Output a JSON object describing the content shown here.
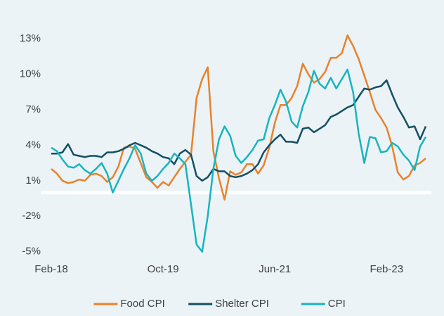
{
  "chart_data": {
    "type": "line",
    "categories": [
      "Feb-18",
      null,
      null,
      null,
      null,
      null,
      null,
      null,
      null,
      null,
      null,
      null,
      null,
      null,
      null,
      null,
      null,
      null,
      null,
      null,
      "Oct-19",
      null,
      null,
      null,
      null,
      null,
      null,
      null,
      null,
      null,
      null,
      null,
      null,
      null,
      null,
      null,
      null,
      null,
      null,
      null,
      "Jun-21",
      null,
      null,
      null,
      null,
      null,
      null,
      null,
      null,
      null,
      null,
      null,
      null,
      null,
      null,
      null,
      null,
      null,
      null,
      null,
      "Feb-23",
      null,
      null,
      null,
      null,
      null,
      null,
      null
    ],
    "series": [
      {
        "name": "Food CPI",
        "color": "#e8822a",
        "values": [
          2.0,
          1.6,
          1.0,
          0.8,
          0.9,
          1.1,
          1.0,
          1.5,
          1.6,
          1.4,
          0.9,
          1.3,
          2.2,
          3.8,
          3.9,
          3.7,
          2.5,
          1.3,
          0.9,
          0.4,
          0.9,
          0.6,
          1.3,
          2.0,
          2.6,
          3.2,
          8.0,
          9.6,
          10.6,
          3.5,
          1.2,
          -0.6,
          1.8,
          1.5,
          1.7,
          2.4,
          2.4,
          1.6,
          2.3,
          3.8,
          5.9,
          7.4,
          7.4,
          8.0,
          9.0,
          10.9,
          10.0,
          9.3,
          9.6,
          10.2,
          11.4,
          11.4,
          11.8,
          13.3,
          12.4,
          11.3,
          9.9,
          8.5,
          7.0,
          6.3,
          5.5,
          3.9,
          1.7,
          1.1,
          1.4,
          2.3,
          2.5,
          2.9
        ]
      },
      {
        "name": "Shelter CPI",
        "color": "#134f63",
        "values": [
          3.3,
          3.3,
          3.4,
          4.1,
          3.2,
          3.1,
          3.0,
          3.1,
          3.1,
          3.0,
          3.4,
          3.4,
          3.5,
          3.7,
          4.0,
          4.2,
          4.0,
          3.8,
          3.5,
          3.3,
          3.0,
          2.9,
          2.4,
          3.3,
          3.6,
          3.2,
          1.4,
          1.0,
          1.3,
          2.0,
          1.8,
          1.8,
          1.4,
          1.3,
          1.4,
          1.6,
          1.9,
          2.4,
          3.4,
          4.0,
          4.5,
          4.9,
          4.3,
          4.3,
          4.2,
          5.4,
          5.5,
          5.1,
          5.4,
          5.7,
          6.4,
          6.6,
          6.9,
          7.2,
          7.4,
          8.1,
          8.8,
          8.7,
          8.9,
          9.0,
          9.5,
          8.3,
          7.2,
          6.4,
          5.5,
          5.6,
          4.5,
          5.6
        ]
      },
      {
        "name": "CPI",
        "color": "#17b4bf",
        "values": [
          3.8,
          3.5,
          2.8,
          2.2,
          2.1,
          2.4,
          1.9,
          1.6,
          2.0,
          2.5,
          1.6,
          0.0,
          1.0,
          2.0,
          2.9,
          4.0,
          3.3,
          1.6,
          1.0,
          1.4,
          2.0,
          2.5,
          3.3,
          2.9,
          2.4,
          -1.0,
          -4.4,
          -5.0,
          -2.0,
          2.0,
          4.5,
          5.6,
          4.8,
          3.1,
          2.5,
          3.0,
          3.6,
          4.4,
          4.5,
          6.3,
          7.4,
          8.7,
          7.7,
          6.0,
          5.5,
          7.3,
          8.5,
          10.3,
          9.2,
          8.8,
          9.7,
          8.8,
          9.6,
          10.4,
          8.5,
          5.0,
          2.5,
          4.7,
          4.6,
          3.4,
          3.5,
          4.2,
          3.9,
          3.2,
          2.7,
          1.9,
          3.9,
          4.7
        ]
      }
    ],
    "ylim": [
      -5.5,
      14.5
    ],
    "yticks": [
      {
        "value": -5,
        "label": "-5%"
      },
      {
        "value": -2,
        "label": "-2%"
      },
      {
        "value": 1,
        "label": "1%"
      },
      {
        "value": 4,
        "label": "4%"
      },
      {
        "value": 7,
        "label": "7%"
      },
      {
        "value": 10,
        "label": "10%"
      },
      {
        "value": 13,
        "label": "13%"
      }
    ],
    "grid": false,
    "legend": "bottom"
  }
}
